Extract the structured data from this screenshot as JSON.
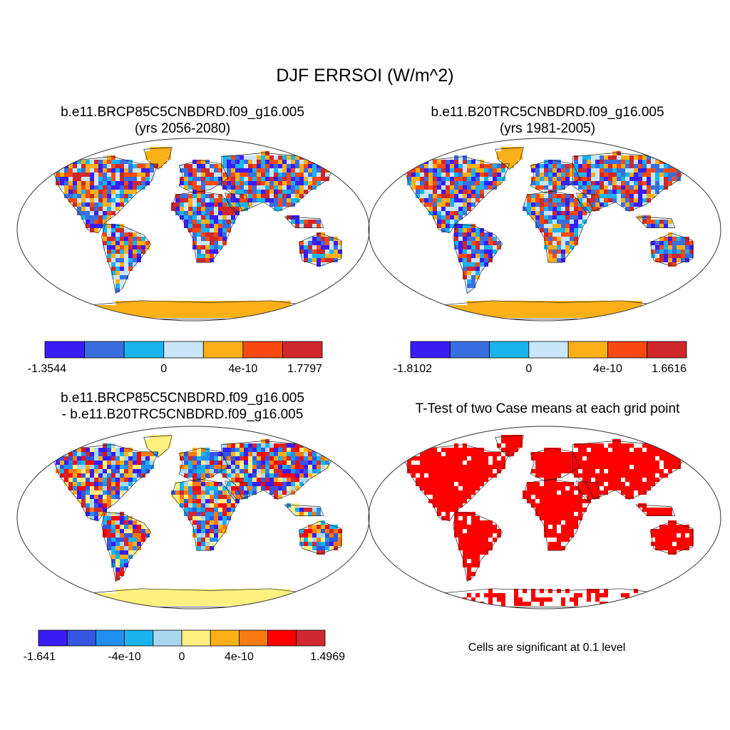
{
  "title": "DJF ERRSOI (W/m^2)",
  "panels": [
    {
      "line1": "b.e11.BRCP85C5CNBDRD.f09_g16.005",
      "line2": "(yrs 2056-2080)"
    },
    {
      "line1": "b.e11.B20TRC5CNBDRD.f09_g16.005",
      "line2": "(yrs 1981-2005)"
    },
    {
      "line1": "b.e11.BRCP85C5CNBDRD.f09_g16.005",
      "line2": "- b.e11.B20TRC5CNBDRD.f09_g16.005"
    },
    {
      "line1": "T-Test of two Case means at each grid point",
      "line2": ""
    }
  ],
  "significance_note": "Cells are significant at 0.1 level",
  "chart_data": [
    {
      "type": "heatmap",
      "title": "b.e11.BRCP85C5CNBDRD.f09_g16.005 (yrs 2056-2080)",
      "colorbar": {
        "colors": [
          "#3a1cf5",
          "#3a6ee0",
          "#18b4f0",
          "#c8e6f8",
          "#fbb018",
          "#f84a10",
          "#d0282a"
        ],
        "tick_labels": [
          "-1.3544",
          "0",
          "4e-10",
          "1.7797"
        ],
        "min": -1.3544,
        "max": 1.7797
      }
    },
    {
      "type": "heatmap",
      "title": "b.e11.B20TRC5CNBDRD.f09_g16.005 (yrs 1981-2005)",
      "colorbar": {
        "colors": [
          "#3a1cf5",
          "#3a6ee0",
          "#18b4f0",
          "#c8e6f8",
          "#fbb018",
          "#f84a10",
          "#d0282a"
        ],
        "tick_labels": [
          "-1.8102",
          "0",
          "4e-10",
          "1.6616"
        ],
        "min": -1.8102,
        "max": 1.6616
      }
    },
    {
      "type": "heatmap",
      "title": "b.e11.BRCP85C5CNBDRD.f09_g16.005 - b.e11.B20TRC5CNBDRD.f09_g16.005",
      "colorbar": {
        "colors": [
          "#3a1cf5",
          "#3456e0",
          "#2090f0",
          "#18b4f0",
          "#a8d8f0",
          "#fff080",
          "#fbb018",
          "#f87a10",
          "#ff0000",
          "#d02830"
        ],
        "tick_labels": [
          "-1.641",
          "-4e-10",
          "0",
          "4e-10",
          "1.4969"
        ],
        "min": -1.641,
        "max": 1.4969
      }
    },
    {
      "type": "heatmap",
      "title": "T-Test of two Case means at each grid point",
      "colorbar": {
        "colors": [
          "#ff0000"
        ],
        "tick_labels": []
      }
    }
  ]
}
